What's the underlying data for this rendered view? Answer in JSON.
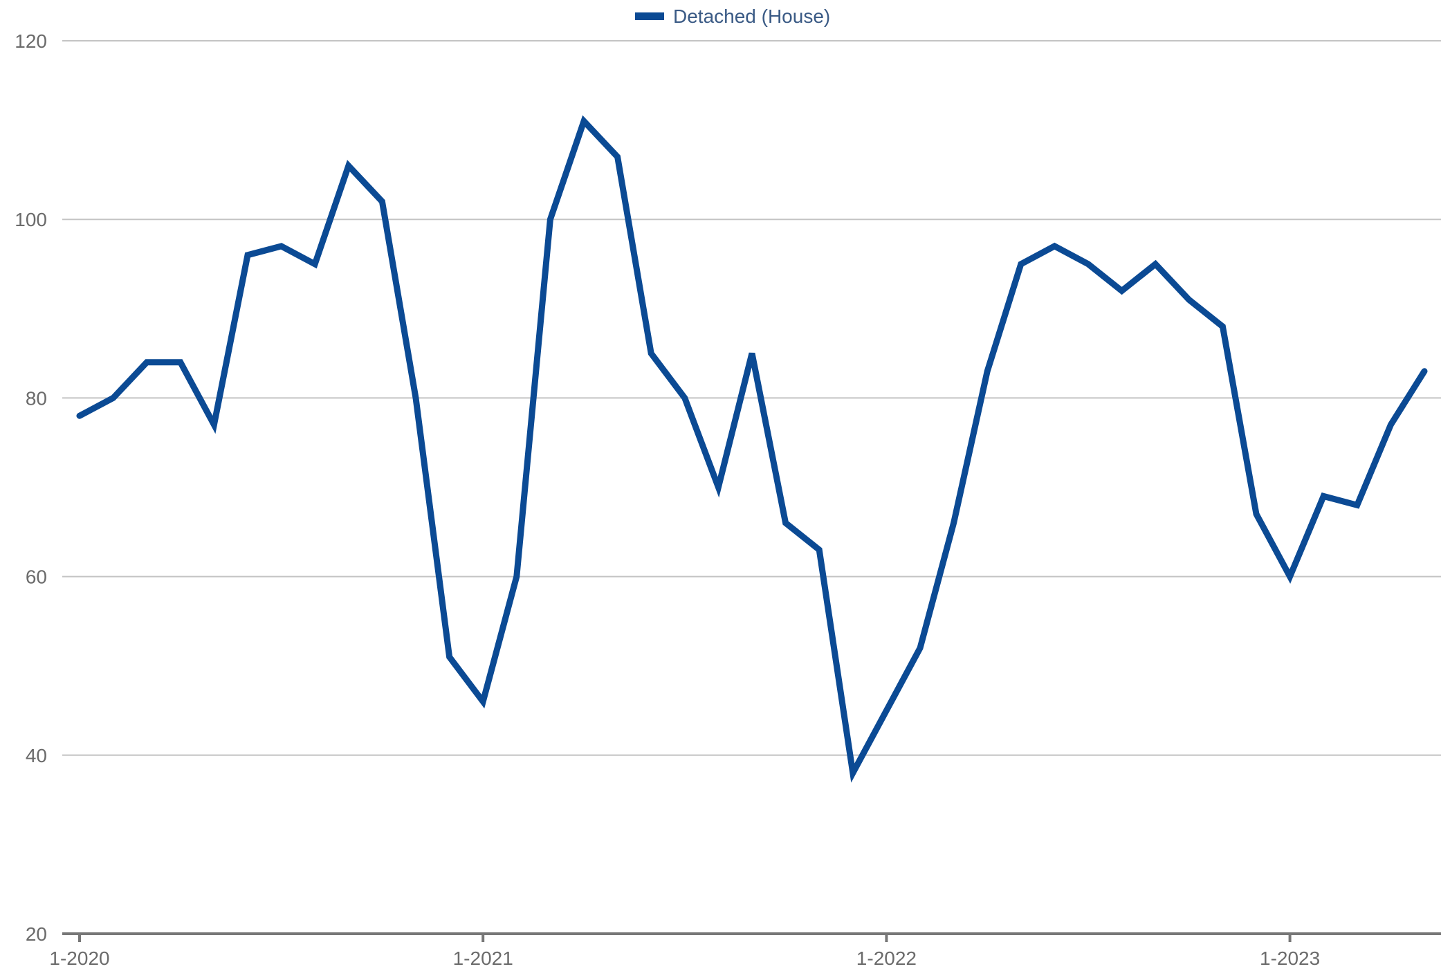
{
  "chart_data": {
    "type": "line",
    "title": "",
    "xlabel": "",
    "ylabel": "",
    "ylim": [
      20,
      120
    ],
    "yticks": [
      20,
      40,
      60,
      80,
      100,
      120
    ],
    "grid": true,
    "legend_position": "top-center",
    "x_tick_labels": [
      "1-2020",
      "1-2021",
      "1-2022",
      "1-2023"
    ],
    "x_tick_positions": [
      "2020-01",
      "2021-01",
      "2022-01",
      "2023-01"
    ],
    "x": [
      "2020-01",
      "2020-02",
      "2020-03",
      "2020-04",
      "2020-05",
      "2020-06",
      "2020-07",
      "2020-08",
      "2020-09",
      "2020-10",
      "2020-11",
      "2020-12",
      "2021-01",
      "2021-02",
      "2021-03",
      "2021-04",
      "2021-05",
      "2021-06",
      "2021-07",
      "2021-08",
      "2021-09",
      "2021-10",
      "2021-11",
      "2021-12",
      "2022-01",
      "2022-02",
      "2022-03",
      "2022-04",
      "2022-05",
      "2022-06",
      "2022-07",
      "2022-08",
      "2022-09",
      "2022-10",
      "2022-11",
      "2022-12",
      "2023-01",
      "2023-02",
      "2023-03",
      "2023-04",
      "2023-05"
    ],
    "series": [
      {
        "name": "Detached (House)",
        "color": "#0b4a94",
        "values": [
          78,
          80,
          84,
          84,
          77,
          96,
          97,
          95,
          106,
          102,
          80,
          51,
          46,
          60,
          100,
          111,
          107,
          85,
          80,
          70,
          85,
          66,
          63,
          38,
          45,
          52,
          66,
          83,
          95,
          97,
          95,
          92,
          95,
          91,
          88,
          67,
          60,
          69,
          68,
          77,
          83
        ]
      }
    ]
  }
}
